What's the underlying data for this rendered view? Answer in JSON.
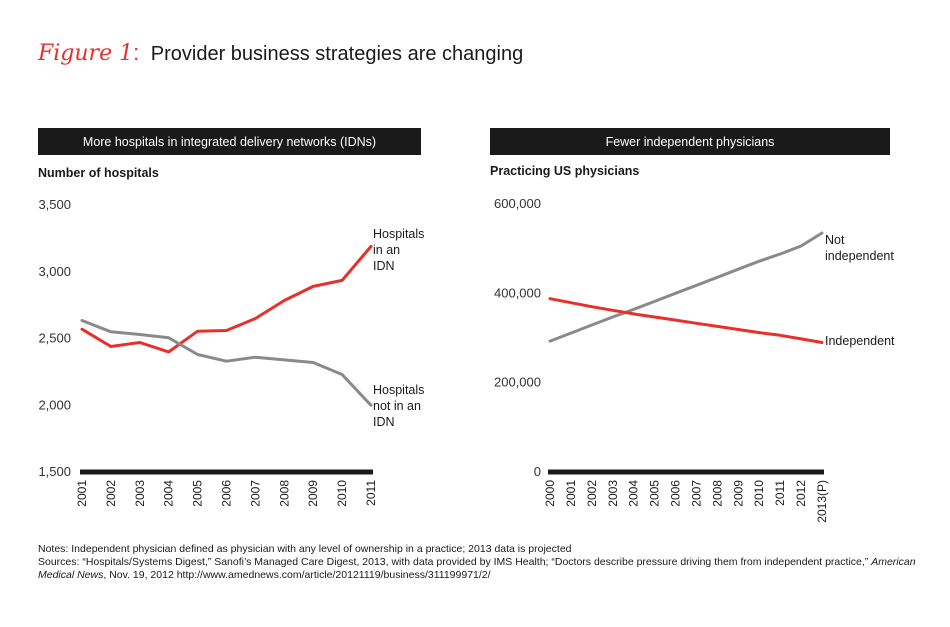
{
  "figure": {
    "label": "Figure 1",
    "colon": ":",
    "title": "Provider business strategies are changing"
  },
  "colors": {
    "red": "#e8302a",
    "gray": "#8a8a8a",
    "axis": "#1a1a1a"
  },
  "chart_data": [
    {
      "type": "line",
      "header": "More hospitals in integrated delivery networks (IDNs)",
      "ylabel": "Number of hospitals",
      "ylim": [
        1500,
        3500
      ],
      "yticks": [
        1500,
        2000,
        2500,
        3000,
        3500
      ],
      "ytick_labels": [
        "1,500",
        "2,000",
        "2,500",
        "3,000",
        "3,500"
      ],
      "x": [
        "2001",
        "2002",
        "2003",
        "2004",
        "2005",
        "2006",
        "2007",
        "2008",
        "2009",
        "2010",
        "2011"
      ],
      "series": [
        {
          "name": "Hospitals in an IDN",
          "label_lines": [
            "Hospitals",
            "in an",
            "IDN"
          ],
          "color": "#e8302a",
          "values": [
            2570,
            2440,
            2470,
            2400,
            2555,
            2560,
            2650,
            2785,
            2890,
            2935,
            3190
          ]
        },
        {
          "name": "Hospitals not in an IDN",
          "label_lines": [
            "Hospitals",
            "not in an",
            "IDN"
          ],
          "color": "#8a8a8a",
          "values": [
            2635,
            2550,
            2530,
            2505,
            2380,
            2330,
            2360,
            2340,
            2320,
            2230,
            2000
          ]
        }
      ]
    },
    {
      "type": "line",
      "header": "Fewer independent physicians",
      "ylabel": "Practicing US physicians",
      "ylim": [
        0,
        600000
      ],
      "yticks": [
        0,
        200000,
        400000,
        600000
      ],
      "ytick_labels": [
        "0",
        "200,000",
        "400,000",
        "600,000"
      ],
      "x": [
        "2000",
        "2001",
        "2002",
        "2003",
        "2004",
        "2005",
        "2006",
        "2007",
        "2008",
        "2009",
        "2010",
        "2011",
        "2012",
        "2013(P)"
      ],
      "series": [
        {
          "name": "Not independent",
          "label_lines": [
            "Not",
            "independent"
          ],
          "color": "#8a8a8a",
          "values": [
            293000,
            311000,
            329000,
            347000,
            364000,
            382000,
            400000,
            418000,
            436000,
            454000,
            472000,
            488000,
            506000,
            535000
          ]
        },
        {
          "name": "Independent",
          "label_lines": [
            "Independent"
          ],
          "color": "#e8302a",
          "values": [
            388000,
            379000,
            370000,
            362000,
            354000,
            347000,
            340000,
            333000,
            326000,
            319000,
            312000,
            306000,
            298000,
            290000
          ]
        }
      ]
    }
  ],
  "notes": {
    "line1": "Notes: Independent physician defined as physician with any level of ownership in a practice; 2013 data is projected",
    "line2_a": "Sources: “Hospitals/Systems Digest,” Sanofi’s Managed Care Digest, 2013, with data provided by IMS Health; “Doctors describe pressure driving them from independent practice,” ",
    "line2_pub": "American Medical News",
    "line2_b": ", Nov. 19, 2012 http://www.amednews.com/article/20121119/business/311199971/2/"
  }
}
